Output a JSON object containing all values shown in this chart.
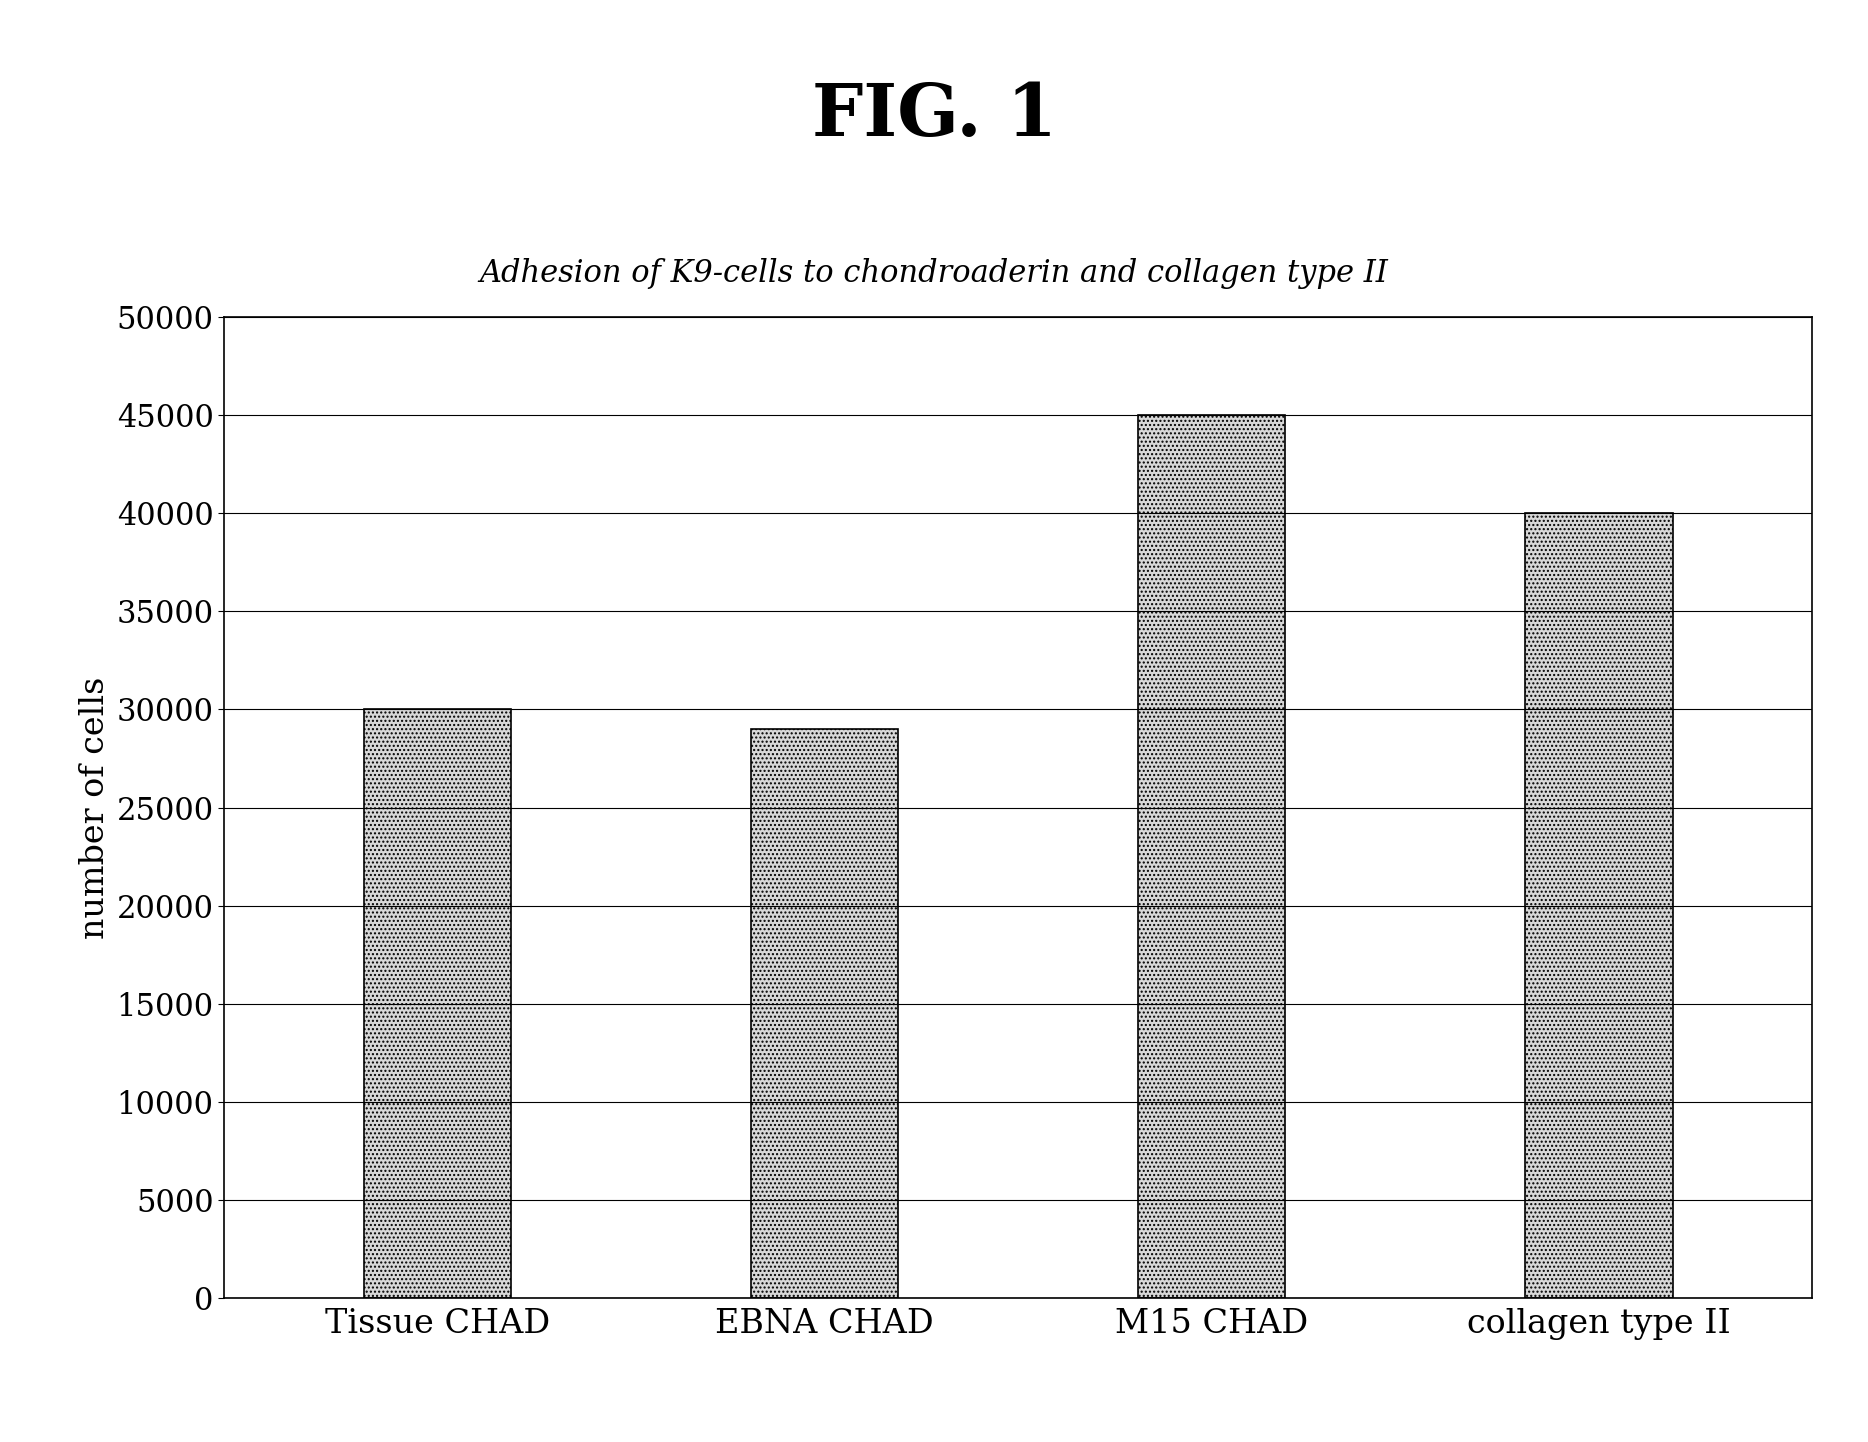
{
  "title": "FIG. 1",
  "subtitle": "Adhesion of K9-cells to chondroaderin and collagen type II",
  "categories": [
    "Tissue CHAD",
    "EBNA CHAD",
    "M15 CHAD",
    "collagen type II"
  ],
  "values": [
    30000,
    29000,
    45000,
    40000
  ],
  "ylabel": "number of cells",
  "ylim": [
    0,
    50000
  ],
  "yticks": [
    0,
    5000,
    10000,
    15000,
    20000,
    25000,
    30000,
    35000,
    40000,
    45000,
    50000
  ],
  "bar_color": "#d8d8d8",
  "bar_hatch": "....",
  "bar_edgecolor": "#000000",
  "background_color": "#ffffff",
  "title_fontsize": 52,
  "subtitle_fontsize": 22,
  "ylabel_fontsize": 24,
  "tick_fontsize": 22,
  "xtick_fontsize": 24,
  "bar_width": 0.38,
  "bar_spacing": 1.0
}
